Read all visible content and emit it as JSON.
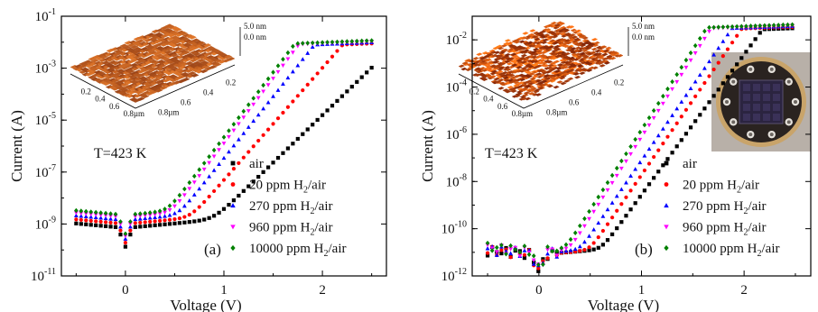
{
  "chart_data": [
    {
      "type": "scatter",
      "panel_label": "(a)",
      "annotation": "T=423 K",
      "ylabel": "Current (A)",
      "xlabel": "Voltage (V)",
      "yscale": "log",
      "xlim": [
        -0.65,
        2.65
      ],
      "ylim": [
        1e-11,
        0.1
      ],
      "x_ticks": [
        0,
        1,
        2
      ],
      "y_ticks": [
        {
          "value": 1e-11,
          "label_base": "10",
          "label_exp": "-11"
        },
        {
          "value": 1e-09,
          "label_base": "10",
          "label_exp": "-9"
        },
        {
          "value": 1e-07,
          "label_base": "10",
          "label_exp": "-7"
        },
        {
          "value": 1e-05,
          "label_base": "10",
          "label_exp": "-5"
        },
        {
          "value": 0.001,
          "label_base": "10",
          "label_exp": "-3"
        },
        {
          "value": 0.1,
          "label_base": "10",
          "label_exp": "-1"
        }
      ],
      "legend_position": "lower-right",
      "inset": {
        "type": "afm-3d-surface",
        "z_labels": [
          "5.0 nm",
          "0.0 nm"
        ],
        "x_labels": [
          "0.2",
          "0.4",
          "0.6",
          "0.8µm"
        ],
        "y_labels": [
          "0.8µm",
          "0.6",
          "0.4",
          "0.2"
        ],
        "roughness": "low"
      },
      "series": [
        {
          "name": "air",
          "name_main": "air",
          "name_sub": "",
          "name_tail": "",
          "marker": "square",
          "color": "#000000",
          "onset": 1.0,
          "width": 0.26,
          "leak": 7e-10,
          "sat": 0.009,
          "sat_sharp": 0.75
        },
        {
          "name": "20 ppm H2/air",
          "name_main": "20 ppm H",
          "name_sub": "2",
          "name_tail": "/air",
          "marker": "circle",
          "color": "#ff0000",
          "onset": 0.86,
          "width": 0.22,
          "leak": 1e-09,
          "sat": 0.01,
          "sat_sharp": 0.75
        },
        {
          "name": "270 ppm H2/air",
          "name_main": "270 ppm H",
          "name_sub": "2",
          "name_tail": "/air",
          "marker": "triangle-up",
          "color": "#0000ff",
          "onset": 0.78,
          "width": 0.2,
          "leak": 1.4e-09,
          "sat": 0.011,
          "sat_sharp": 0.75
        },
        {
          "name": "960 ppm H2/air",
          "name_main": "960 ppm H",
          "name_sub": "2",
          "name_tail": "/air",
          "marker": "triangle-down",
          "color": "#ff00ff",
          "onset": 0.73,
          "width": 0.19,
          "leak": 1.8e-09,
          "sat": 0.012,
          "sat_sharp": 0.75
        },
        {
          "name": "10000 ppm H2/air",
          "name_main": "10000 ppm H",
          "name_sub": "2",
          "name_tail": "/air",
          "marker": "diamond",
          "color": "#008000",
          "onset": 0.7,
          "width": 0.19,
          "leak": 2.2e-09,
          "sat": 0.013,
          "sat_sharp": 0.75
        }
      ]
    },
    {
      "type": "scatter",
      "panel_label": "(b)",
      "annotation": "T=423 K",
      "ylabel": "Current (A)",
      "xlabel": "Voltage (V)",
      "yscale": "log",
      "xlim": [
        -0.65,
        2.65
      ],
      "ylim": [
        1e-12,
        0.1
      ],
      "x_ticks": [
        0,
        1,
        2
      ],
      "y_ticks": [
        {
          "value": 1e-12,
          "label_base": "10",
          "label_exp": "-12"
        },
        {
          "value": 1e-10,
          "label_base": "10",
          "label_exp": "-10"
        },
        {
          "value": 1e-08,
          "label_base": "10",
          "label_exp": "-8"
        },
        {
          "value": 1e-06,
          "label_base": "10",
          "label_exp": "-6"
        },
        {
          "value": 0.0001,
          "label_base": "10",
          "label_exp": "-4"
        },
        {
          "value": 0.01,
          "label_base": "10",
          "label_exp": "-2"
        }
      ],
      "legend_position": "lower-right",
      "inset": {
        "type": "afm-3d-surface",
        "z_labels": [
          "5.0 nm",
          "0.0 nm"
        ],
        "x_labels": [
          "0.2",
          "0.4",
          "0.6",
          "0.8µm"
        ],
        "y_labels": [
          "0.8µm",
          "0.6",
          "0.4",
          "0.2"
        ],
        "roughness": "high"
      },
      "photo": "device-photo",
      "series": [
        {
          "name": "air",
          "name_main": "air",
          "name_sub": "",
          "name_tail": "",
          "marker": "square",
          "color": "#000000",
          "onset": 0.92,
          "width": 0.16,
          "leak": 8e-12,
          "sat": 0.035,
          "sat_sharp": 0.6
        },
        {
          "name": "20 ppm H2/air",
          "name_main": "20 ppm H",
          "name_sub": "2",
          "name_tail": "/air",
          "marker": "circle",
          "color": "#ff0000",
          "onset": 0.83,
          "width": 0.15,
          "leak": 8e-12,
          "sat": 0.04,
          "sat_sharp": 0.6
        },
        {
          "name": "270 ppm H2/air",
          "name_main": "270 ppm H",
          "name_sub": "2",
          "name_tail": "/air",
          "marker": "triangle-up",
          "color": "#0000ff",
          "onset": 0.74,
          "width": 0.15,
          "leak": 9e-12,
          "sat": 0.043,
          "sat_sharp": 0.6
        },
        {
          "name": "960 ppm H2/air",
          "name_main": "960 ppm H",
          "name_sub": "2",
          "name_tail": "/air",
          "marker": "triangle-down",
          "color": "#ff00ff",
          "onset": 0.66,
          "width": 0.14,
          "leak": 1e-11,
          "sat": 0.046,
          "sat_sharp": 0.6
        },
        {
          "name": "10000 ppm H2/air",
          "name_main": "10000 ppm H",
          "name_sub": "2",
          "name_tail": "/air",
          "marker": "diamond",
          "color": "#008000",
          "onset": 0.62,
          "width": 0.14,
          "leak": 1.1e-11,
          "sat": 0.05,
          "sat_sharp": 0.6
        }
      ]
    }
  ]
}
